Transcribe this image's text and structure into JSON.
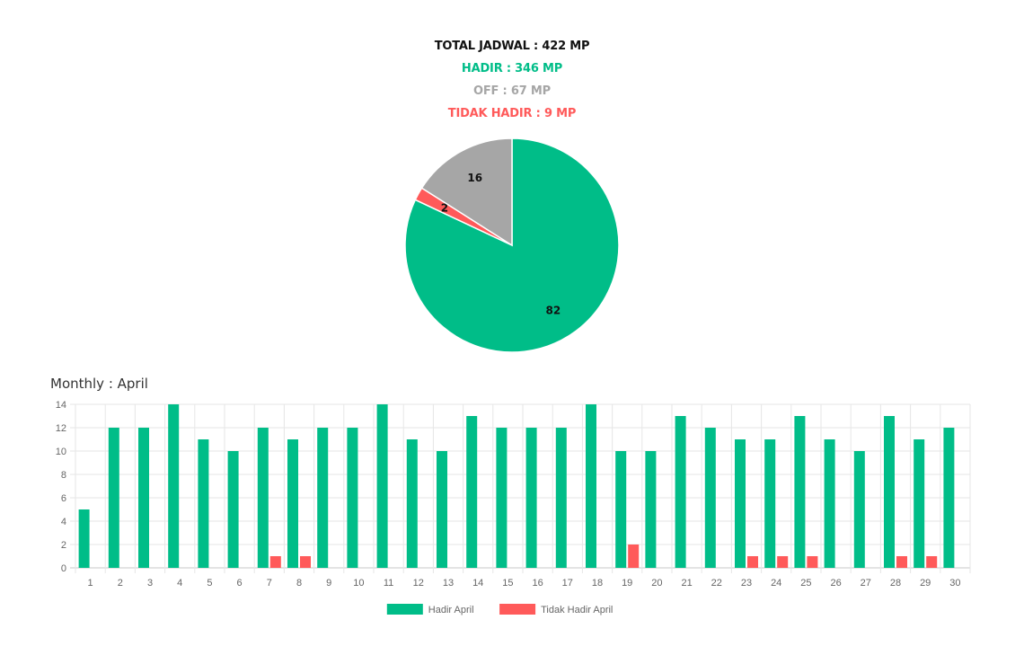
{
  "summary": {
    "total": "TOTAL JADWAL : 422 MP",
    "hadir": "HADIR : 346 MP",
    "off": "OFF : 67 MP",
    "tidak_hadir": "TIDAK HADIR : 9 MP"
  },
  "monthly_title": "Monthly : April",
  "colors": {
    "hadir": "#00bd88",
    "off": "#a6a6a6",
    "tidak_hadir": "#ff5a5a",
    "total": "#111111",
    "grid": "#e6e6e6",
    "axis": "#c8c8c8"
  },
  "chart_data": [
    {
      "type": "pie",
      "slices": [
        {
          "label": "HADIR",
          "value": 82,
          "display": "82"
        },
        {
          "label": "TIDAK HADIR",
          "value": 2,
          "display": "2"
        },
        {
          "label": "OFF",
          "value": 16,
          "display": "16"
        }
      ]
    },
    {
      "type": "bar",
      "title": "Monthly : April",
      "categories": [
        "1",
        "2",
        "3",
        "4",
        "5",
        "6",
        "7",
        "8",
        "9",
        "10",
        "11",
        "12",
        "13",
        "14",
        "15",
        "16",
        "17",
        "18",
        "19",
        "20",
        "21",
        "22",
        "23",
        "24",
        "25",
        "26",
        "27",
        "28",
        "29",
        "30"
      ],
      "series": [
        {
          "name": "Hadir April",
          "values": [
            5,
            12,
            12,
            14,
            11,
            10,
            12,
            11,
            12,
            12,
            14,
            11,
            10,
            13,
            12,
            12,
            12,
            14,
            10,
            10,
            13,
            12,
            11,
            11,
            13,
            11,
            10,
            13,
            11,
            12
          ]
        },
        {
          "name": "Tidak Hadir April",
          "values": [
            0,
            0,
            0,
            0,
            0,
            0,
            1,
            1,
            0,
            0,
            0,
            0,
            0,
            0,
            0,
            0,
            0,
            0,
            2,
            0,
            0,
            0,
            1,
            1,
            1,
            0,
            0,
            1,
            1,
            0
          ]
        }
      ],
      "ylim": [
        0,
        14
      ],
      "yticks": [
        0,
        2,
        4,
        6,
        8,
        10,
        12,
        14
      ],
      "grid": true,
      "legend_position": "bottom-center"
    }
  ]
}
